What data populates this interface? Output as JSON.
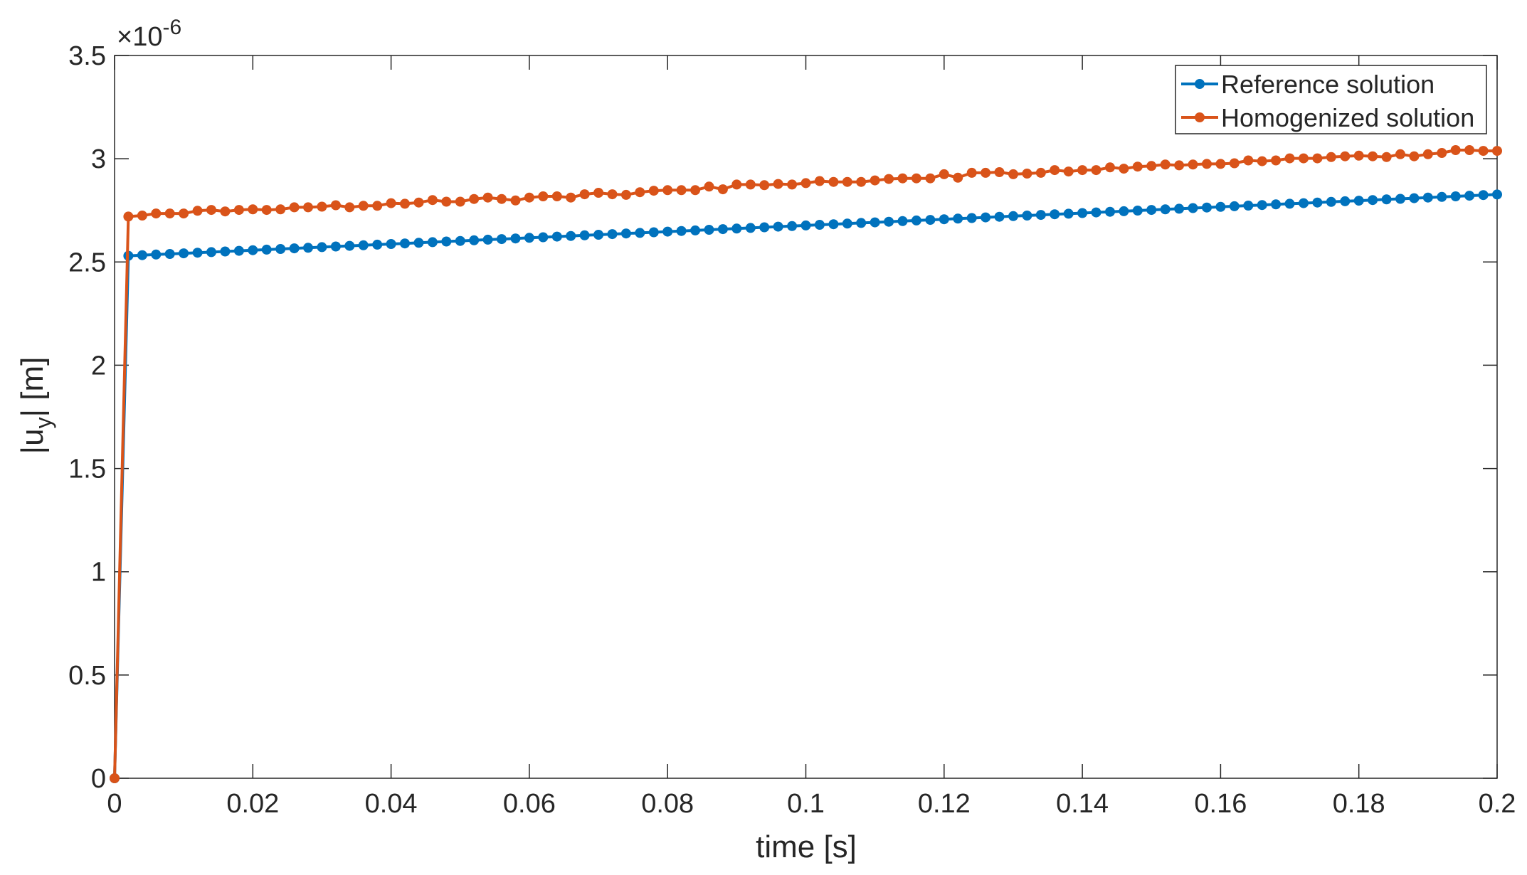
{
  "chart_data": {
    "type": "line",
    "title": "",
    "xlabel": "time [s]",
    "ylabel_parts": {
      "pre": "|u",
      "sub": "y",
      "post": "| [m]"
    },
    "y_exponent_label": {
      "prefix": "×10",
      "power": "-6"
    },
    "xlim": [
      0,
      0.2
    ],
    "ylim": [
      0,
      3.5
    ],
    "x_ticks": [
      0,
      0.02,
      0.04,
      0.06,
      0.08,
      0.1,
      0.12,
      0.14,
      0.16,
      0.18,
      0.2
    ],
    "x_tick_labels": [
      "0",
      "0.02",
      "0.04",
      "0.06",
      "0.08",
      "0.1",
      "0.12",
      "0.14",
      "0.16",
      "0.18",
      "0.2"
    ],
    "y_ticks": [
      0,
      0.5,
      1,
      1.5,
      2,
      2.5,
      3,
      3.5
    ],
    "y_tick_labels": [
      "0",
      "0.5",
      "1",
      "1.5",
      "2",
      "2.5",
      "3",
      "3.5"
    ],
    "grid": false,
    "legend_position": "top-right",
    "series": [
      {
        "name": "Reference solution",
        "color": "#0072BD",
        "x": [
          0,
          0.002,
          0.004,
          0.006,
          0.008,
          0.01,
          0.012,
          0.014,
          0.016,
          0.018,
          0.02,
          0.022,
          0.024,
          0.026,
          0.028,
          0.03,
          0.032,
          0.034,
          0.036,
          0.038,
          0.04,
          0.042,
          0.044,
          0.046,
          0.048,
          0.05,
          0.052,
          0.054,
          0.056,
          0.058,
          0.06,
          0.062,
          0.064,
          0.066,
          0.068,
          0.07,
          0.072,
          0.074,
          0.076,
          0.078,
          0.08,
          0.082,
          0.084,
          0.086,
          0.088,
          0.09,
          0.092,
          0.094,
          0.096,
          0.098,
          0.1,
          0.102,
          0.104,
          0.106,
          0.108,
          0.11,
          0.112,
          0.114,
          0.116,
          0.118,
          0.12,
          0.122,
          0.124,
          0.126,
          0.128,
          0.13,
          0.132,
          0.134,
          0.136,
          0.138,
          0.14,
          0.142,
          0.144,
          0.146,
          0.148,
          0.15,
          0.152,
          0.154,
          0.156,
          0.158,
          0.16,
          0.162,
          0.164,
          0.166,
          0.168,
          0.17,
          0.172,
          0.174,
          0.176,
          0.178,
          0.18,
          0.182,
          0.184,
          0.186,
          0.188,
          0.19,
          0.192,
          0.194,
          0.196,
          0.198,
          0.2
        ],
        "values": [
          0,
          2.53,
          2.533,
          2.536,
          2.539,
          2.542,
          2.545,
          2.548,
          2.551,
          2.554,
          2.557,
          2.56,
          2.563,
          2.566,
          2.569,
          2.572,
          2.575,
          2.578,
          2.581,
          2.584,
          2.587,
          2.59,
          2.593,
          2.596,
          2.599,
          2.602,
          2.605,
          2.608,
          2.611,
          2.614,
          2.617,
          2.62,
          2.623,
          2.626,
          2.629,
          2.632,
          2.635,
          2.638,
          2.641,
          2.644,
          2.647,
          2.65,
          2.653,
          2.656,
          2.659,
          2.662,
          2.665,
          2.668,
          2.671,
          2.674,
          2.677,
          2.68,
          2.683,
          2.686,
          2.689,
          2.692,
          2.695,
          2.698,
          2.701,
          2.704,
          2.707,
          2.71,
          2.713,
          2.716,
          2.719,
          2.722,
          2.725,
          2.728,
          2.731,
          2.734,
          2.737,
          2.74,
          2.743,
          2.746,
          2.749,
          2.752,
          2.755,
          2.758,
          2.761,
          2.764,
          2.767,
          2.77,
          2.773,
          2.776,
          2.779,
          2.782,
          2.785,
          2.788,
          2.791,
          2.794,
          2.797,
          2.8,
          2.803,
          2.806,
          2.809,
          2.812,
          2.815,
          2.818,
          2.821,
          2.824,
          2.827
        ]
      },
      {
        "name": "Homogenized solution",
        "color": "#D95319",
        "x": [
          0,
          0.002,
          0.004,
          0.006,
          0.008,
          0.01,
          0.012,
          0.014,
          0.016,
          0.018,
          0.02,
          0.022,
          0.024,
          0.026,
          0.028,
          0.03,
          0.032,
          0.034,
          0.036,
          0.038,
          0.04,
          0.042,
          0.044,
          0.046,
          0.048,
          0.05,
          0.052,
          0.054,
          0.056,
          0.058,
          0.06,
          0.062,
          0.064,
          0.066,
          0.068,
          0.07,
          0.072,
          0.074,
          0.076,
          0.078,
          0.08,
          0.082,
          0.084,
          0.086,
          0.088,
          0.09,
          0.092,
          0.094,
          0.096,
          0.098,
          0.1,
          0.102,
          0.104,
          0.106,
          0.108,
          0.11,
          0.112,
          0.114,
          0.116,
          0.118,
          0.12,
          0.122,
          0.124,
          0.126,
          0.128,
          0.13,
          0.132,
          0.134,
          0.136,
          0.138,
          0.14,
          0.142,
          0.144,
          0.146,
          0.148,
          0.15,
          0.152,
          0.154,
          0.156,
          0.158,
          0.16,
          0.162,
          0.164,
          0.166,
          0.168,
          0.17,
          0.172,
          0.174,
          0.176,
          0.178,
          0.18,
          0.182,
          0.184,
          0.186,
          0.188,
          0.19,
          0.192,
          0.194,
          0.196,
          0.198,
          0.2
        ],
        "values": [
          0,
          2.72,
          2.725,
          2.735,
          2.735,
          2.735,
          2.748,
          2.752,
          2.745,
          2.752,
          2.755,
          2.752,
          2.755,
          2.765,
          2.765,
          2.768,
          2.775,
          2.765,
          2.772,
          2.772,
          2.785,
          2.782,
          2.788,
          2.8,
          2.792,
          2.792,
          2.805,
          2.812,
          2.805,
          2.798,
          2.812,
          2.818,
          2.818,
          2.812,
          2.828,
          2.835,
          2.828,
          2.825,
          2.838,
          2.845,
          2.848,
          2.848,
          2.848,
          2.865,
          2.852,
          2.875,
          2.875,
          2.872,
          2.878,
          2.875,
          2.882,
          2.892,
          2.888,
          2.888,
          2.888,
          2.895,
          2.902,
          2.905,
          2.905,
          2.905,
          2.925,
          2.908,
          2.932,
          2.932,
          2.935,
          2.925,
          2.928,
          2.932,
          2.945,
          2.938,
          2.945,
          2.945,
          2.958,
          2.952,
          2.962,
          2.965,
          2.972,
          2.968,
          2.972,
          2.975,
          2.975,
          2.978,
          2.992,
          2.988,
          2.992,
          3.002,
          3.002,
          3.002,
          3.008,
          3.012,
          3.015,
          3.012,
          3.008,
          3.022,
          3.012,
          3.022,
          3.028,
          3.042,
          3.042,
          3.038,
          3.038
        ]
      }
    ]
  }
}
